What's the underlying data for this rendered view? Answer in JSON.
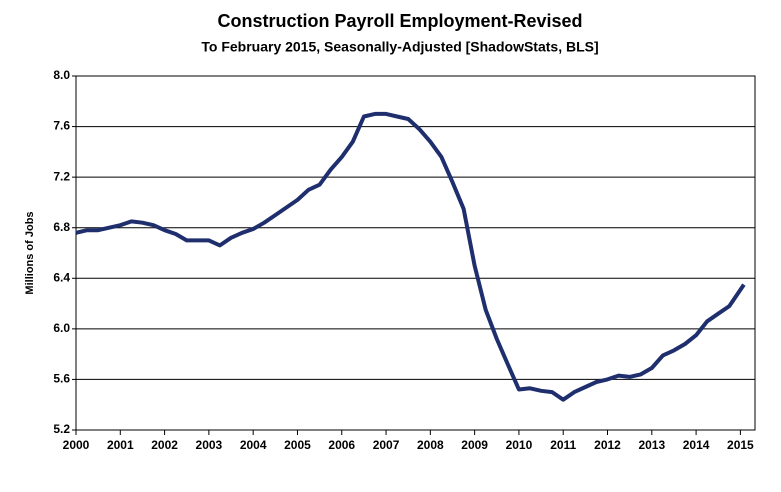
{
  "chart_data": {
    "type": "line",
    "title": "Construction Payroll Employment-Revised",
    "subtitle": "To February 2015, Seasonally-Adjusted [ShadowStats, BLS]",
    "y_label": "Millions  of Jobs",
    "x": [
      2000,
      2000.25,
      2000.5,
      2000.75,
      2001,
      2001.25,
      2001.5,
      2001.75,
      2002,
      2002.25,
      2002.5,
      2002.75,
      2003,
      2003.25,
      2003.5,
      2003.75,
      2004,
      2004.25,
      2004.5,
      2004.75,
      2005,
      2005.25,
      2005.5,
      2005.75,
      2006,
      2006.25,
      2006.5,
      2006.75,
      2007,
      2007.25,
      2007.5,
      2007.75,
      2008,
      2008.25,
      2008.5,
      2008.75,
      2009,
      2009.25,
      2009.5,
      2009.75,
      2010,
      2010.25,
      2010.5,
      2010.75,
      2011,
      2011.25,
      2011.5,
      2011.75,
      2012,
      2012.25,
      2012.5,
      2012.75,
      2013,
      2013.25,
      2013.5,
      2013.75,
      2014,
      2014.25,
      2014.5,
      2014.75,
      2015.08
    ],
    "series": [
      {
        "name": "Construction Payroll Employment",
        "color": "#1f2f6e",
        "values": [
          6.76,
          6.78,
          6.78,
          6.8,
          6.82,
          6.85,
          6.84,
          6.82,
          6.78,
          6.75,
          6.7,
          6.7,
          6.7,
          6.66,
          6.72,
          6.76,
          6.79,
          6.84,
          6.9,
          6.96,
          7.02,
          7.1,
          7.14,
          7.26,
          7.36,
          7.48,
          7.68,
          7.7,
          7.7,
          7.68,
          7.66,
          7.58,
          7.48,
          7.36,
          7.16,
          6.95,
          6.5,
          6.15,
          5.92,
          5.72,
          5.52,
          5.53,
          5.51,
          5.5,
          5.44,
          5.5,
          5.54,
          5.58,
          5.6,
          5.63,
          5.62,
          5.64,
          5.69,
          5.79,
          5.83,
          5.88,
          5.95,
          6.06,
          6.12,
          6.18,
          6.35
        ]
      }
    ],
    "xlim": [
      2000,
      2015.33
    ],
    "xticks": [
      2000,
      2001,
      2002,
      2003,
      2004,
      2005,
      2006,
      2007,
      2008,
      2009,
      2010,
      2011,
      2012,
      2013,
      2014,
      2015
    ],
    "ylim": [
      5.2,
      8
    ],
    "yticks": [
      5.2,
      5.6,
      {
        "value": 6,
        "label": "6.0"
      },
      6.4,
      6.8,
      7.2,
      7.6,
      {
        "value": 8,
        "label": "8.0"
      }
    ],
    "grid": true
  }
}
